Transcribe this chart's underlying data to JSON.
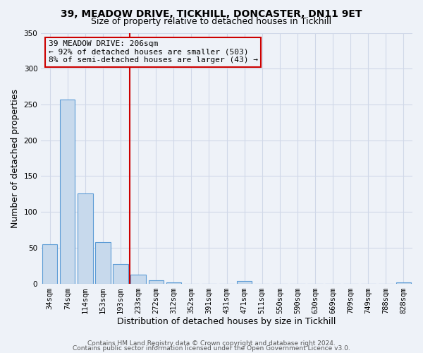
{
  "title1": "39, MEADOW DRIVE, TICKHILL, DONCASTER, DN11 9ET",
  "title2": "Size of property relative to detached houses in Tickhill",
  "xlabel": "Distribution of detached houses by size in Tickhill",
  "ylabel": "Number of detached properties",
  "bar_labels": [
    "34sqm",
    "74sqm",
    "114sqm",
    "153sqm",
    "193sqm",
    "233sqm",
    "272sqm",
    "312sqm",
    "352sqm",
    "391sqm",
    "431sqm",
    "471sqm",
    "511sqm",
    "550sqm",
    "590sqm",
    "630sqm",
    "669sqm",
    "709sqm",
    "749sqm",
    "788sqm",
    "828sqm"
  ],
  "bar_values": [
    55,
    257,
    126,
    58,
    27,
    12,
    5,
    2,
    0,
    0,
    0,
    4,
    0,
    0,
    0,
    0,
    0,
    0,
    0,
    0,
    2
  ],
  "bar_color": "#c7d9ec",
  "bar_edge_color": "#5b9bd5",
  "ylim": [
    0,
    350
  ],
  "yticks": [
    0,
    50,
    100,
    150,
    200,
    250,
    300,
    350
  ],
  "property_line_color": "#cc0000",
  "annotation_title": "39 MEADOW DRIVE: 206sqm",
  "annotation_line1": "← 92% of detached houses are smaller (503)",
  "annotation_line2": "8% of semi-detached houses are larger (43) →",
  "annotation_box_color": "#cc0000",
  "footer1": "Contains HM Land Registry data © Crown copyright and database right 2024.",
  "footer2": "Contains public sector information licensed under the Open Government Licence v3.0.",
  "background_color": "#eef2f8",
  "grid_color": "#d0d8e8",
  "title1_fontsize": 10,
  "title2_fontsize": 9,
  "xlabel_fontsize": 9,
  "ylabel_fontsize": 9,
  "tick_fontsize": 7.5,
  "footer_fontsize": 6.5,
  "annotation_fontsize": 8
}
